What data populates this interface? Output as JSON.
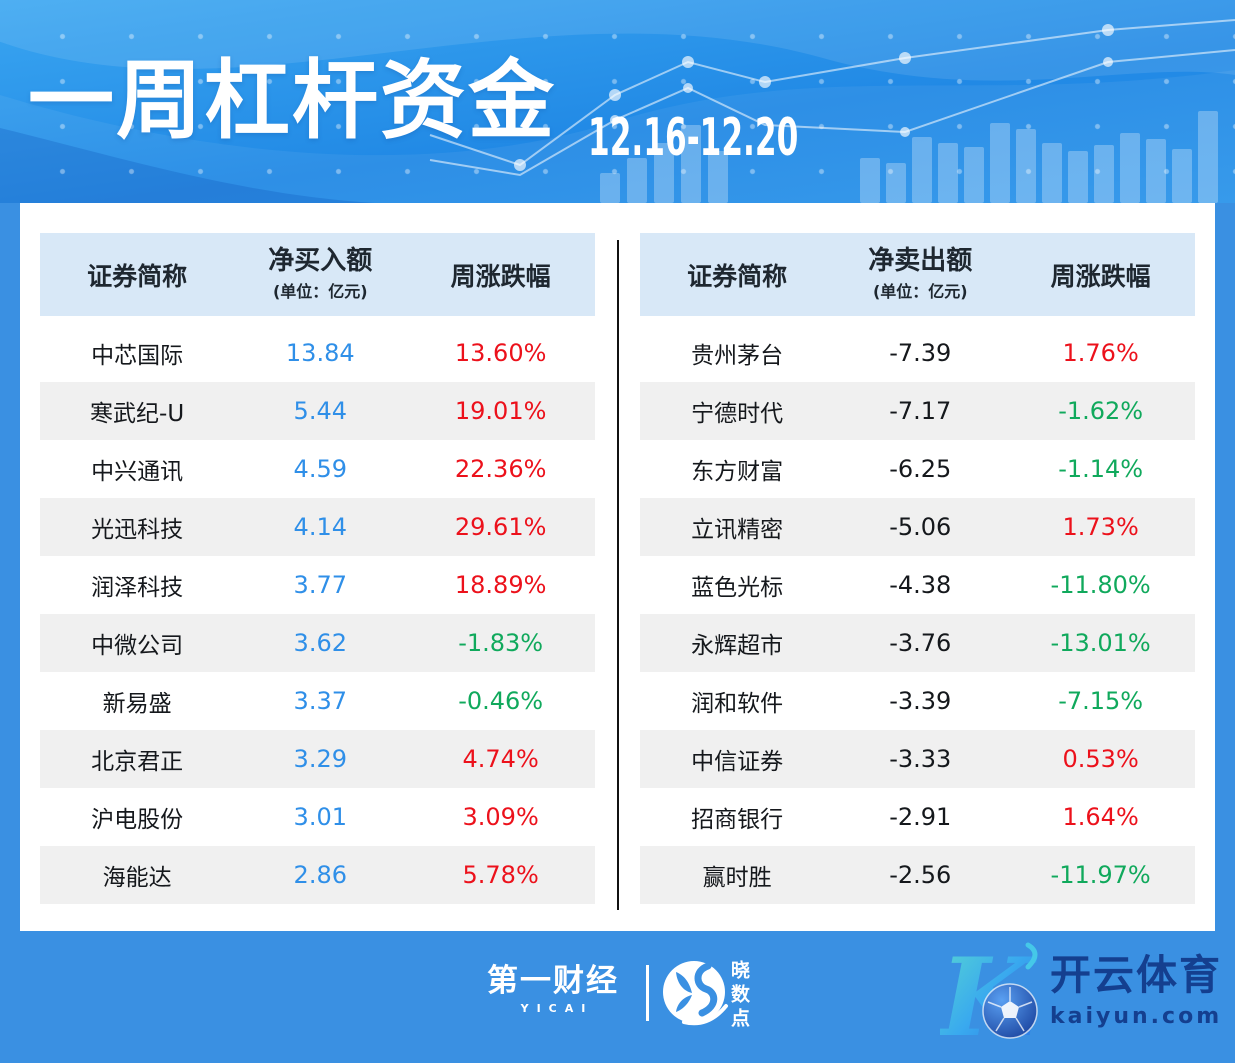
{
  "header": {
    "title": "一周杠杆资金",
    "date_range": "12.16-12.20"
  },
  "chart_data": [
    {
      "type": "table",
      "panel": "net_buy_top10",
      "col_labels": {
        "name": "证券简称",
        "amount": "净买入额",
        "unit": "(单位：亿元)",
        "change": "周涨跌幅"
      },
      "rows": [
        {
          "name": "中芯国际",
          "amount": "13.84",
          "change": "13.60%",
          "direction": "up"
        },
        {
          "name": "寒武纪-U",
          "amount": "5.44",
          "change": "19.01%",
          "direction": "up"
        },
        {
          "name": "中兴通讯",
          "amount": "4.59",
          "change": "22.36%",
          "direction": "up"
        },
        {
          "name": "光迅科技",
          "amount": "4.14",
          "change": "29.61%",
          "direction": "up"
        },
        {
          "name": "润泽科技",
          "amount": "3.77",
          "change": "18.89%",
          "direction": "up"
        },
        {
          "name": "中微公司",
          "amount": "3.62",
          "change": "-1.83%",
          "direction": "down"
        },
        {
          "name": "新易盛",
          "amount": "3.37",
          "change": "-0.46%",
          "direction": "down"
        },
        {
          "name": "北京君正",
          "amount": "3.29",
          "change": "4.74%",
          "direction": "up"
        },
        {
          "name": "沪电股份",
          "amount": "3.01",
          "change": "3.09%",
          "direction": "up"
        },
        {
          "name": "海能达",
          "amount": "2.86",
          "change": "5.78%",
          "direction": "up"
        }
      ]
    },
    {
      "type": "table",
      "panel": "net_sell_top10",
      "col_labels": {
        "name": "证券简称",
        "amount": "净卖出额",
        "unit": "(单位：亿元)",
        "change": "周涨跌幅"
      },
      "rows": [
        {
          "name": "贵州茅台",
          "amount": "-7.39",
          "change": "1.76%",
          "direction": "up"
        },
        {
          "name": "宁德时代",
          "amount": "-7.17",
          "change": "-1.62%",
          "direction": "down"
        },
        {
          "name": "东方财富",
          "amount": "-6.25",
          "change": "-1.14%",
          "direction": "down"
        },
        {
          "name": "立讯精密",
          "amount": "-5.06",
          "change": "1.73%",
          "direction": "up"
        },
        {
          "name": "蓝色光标",
          "amount": "-4.38",
          "change": "-11.80%",
          "direction": "down"
        },
        {
          "name": "永辉超市",
          "amount": "-3.76",
          "change": "-13.01%",
          "direction": "down"
        },
        {
          "name": "润和软件",
          "amount": "-3.39",
          "change": "-7.15%",
          "direction": "down"
        },
        {
          "name": "中信证券",
          "amount": "-3.33",
          "change": "0.53%",
          "direction": "up"
        },
        {
          "name": "招商银行",
          "amount": "-2.91",
          "change": "1.64%",
          "direction": "up"
        },
        {
          "name": "赢时胜",
          "amount": "-2.56",
          "change": "-11.97%",
          "direction": "down"
        }
      ]
    }
  ],
  "footer": {
    "yicai_name": "第一财经",
    "yicai_sub": "YICAI",
    "xsd_name": "晓数点",
    "kaiyun_name": "开云体育",
    "kaiyun_domain": "kaiyun.com"
  },
  "colors": {
    "up_red": "#ec111b",
    "down_green": "#10a95c",
    "buy_value_blue": "#2f8fe8",
    "banner_blue": "#2189e5",
    "footer_blue": "#3a90e2",
    "table_header_bg": "#d8e8f7",
    "row_alt_bg": "#f0f0f0",
    "kaiyun_navy": "#143f8f"
  }
}
